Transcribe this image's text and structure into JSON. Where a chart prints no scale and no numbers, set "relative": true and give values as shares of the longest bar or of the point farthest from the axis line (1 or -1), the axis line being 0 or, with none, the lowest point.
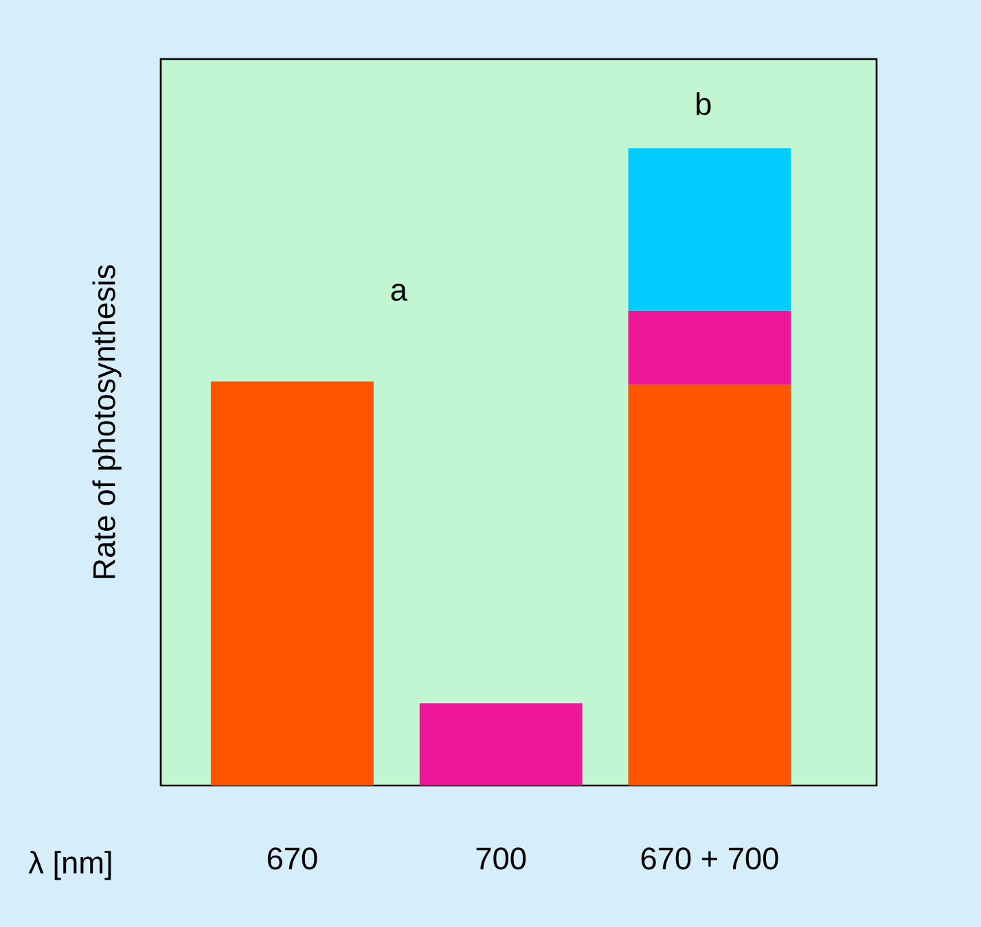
{
  "chart_data": {
    "type": "bar",
    "stacked": true,
    "relative": true,
    "ylabel": "Rate of photosynthesis",
    "xlabel": "λ [nm]",
    "categories": [
      "670",
      "700",
      "670 + 700"
    ],
    "series": [
      {
        "color": "#ff5500",
        "values": [
          0.634,
          null,
          0.629
        ]
      },
      {
        "color": "#f0169a",
        "values": [
          null,
          0.129,
          0.116
        ]
      },
      {
        "color": "#00ccff",
        "values": [
          null,
          null,
          0.255
        ]
      }
    ],
    "annotations": [
      "a",
      "b"
    ]
  }
}
